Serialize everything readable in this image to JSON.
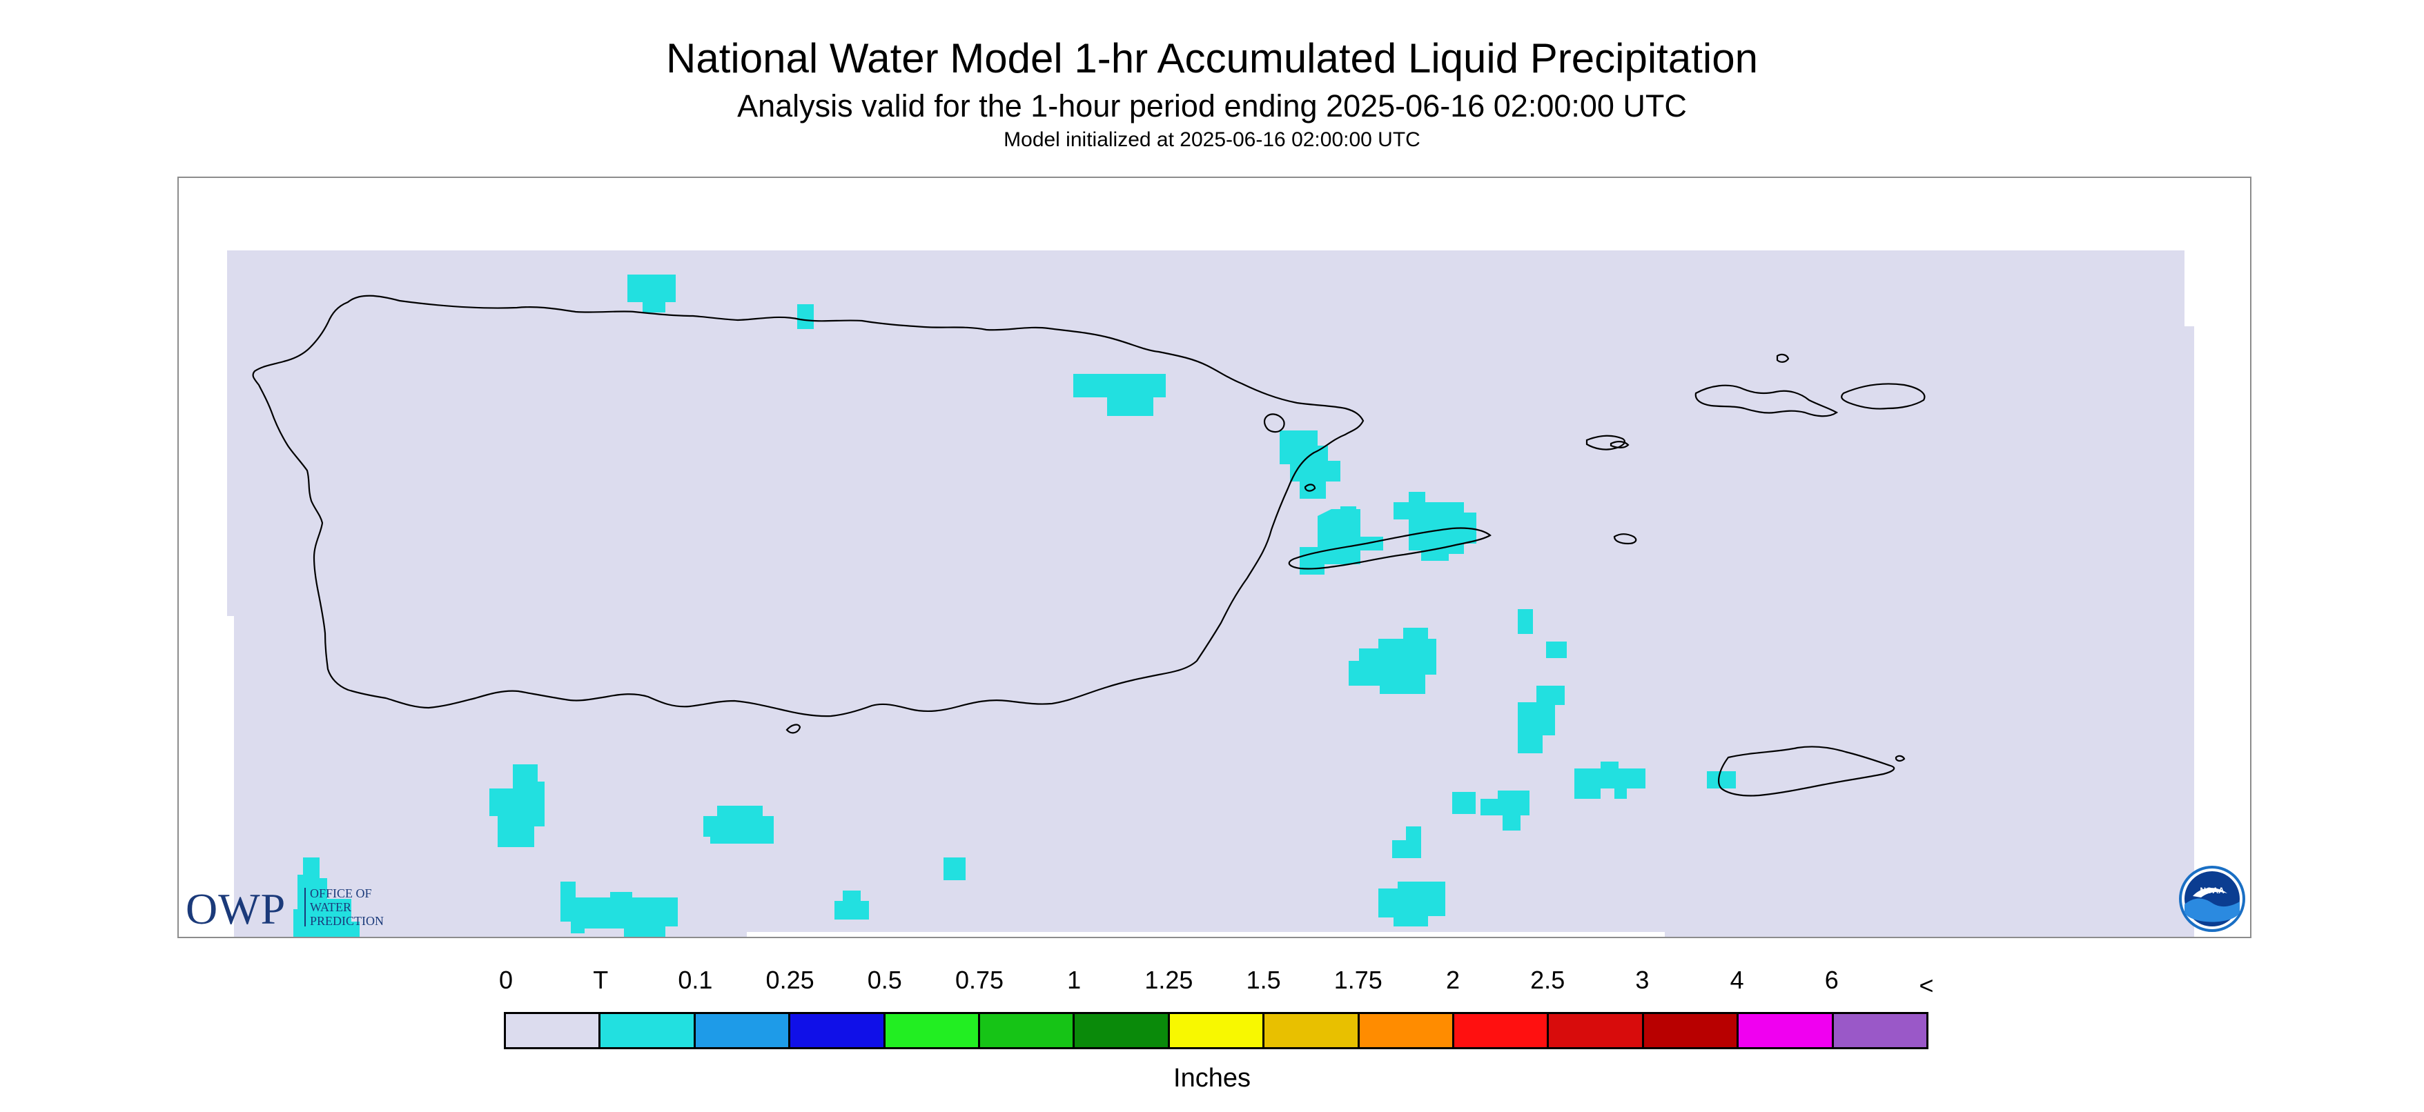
{
  "title": "National Water Model 1-hr Accumulated Liquid Precipitation",
  "subtitle": "Analysis valid for the 1-hour period ending 2025-06-16 02:00:00 UTC",
  "init_line": "Model initialized at 2025-06-16 02:00:00 UTC",
  "logo_owp": {
    "abbr": "OWP",
    "line1": "OFFICE OF",
    "line2": "WATER",
    "line3": "PREDICTION"
  },
  "logo_noaa": "NOAA",
  "legend": {
    "labels": [
      "0",
      "T",
      "0.1",
      "0.25",
      "0.5",
      "0.75",
      "1",
      "1.25",
      "1.5",
      "1.75",
      "2",
      "2.5",
      "3",
      "4",
      "6",
      "<"
    ],
    "colors": [
      "#dcdcee",
      "#22e0e0",
      "#1e9be8",
      "#1010e8",
      "#22ee22",
      "#16c416",
      "#0a8a0a",
      "#f8f800",
      "#e8c000",
      "#ff8c00",
      "#ff1010",
      "#d80c0c",
      "#b80000",
      "#f000f0",
      "#9a58c8"
    ],
    "units": "Inches"
  },
  "map": {
    "background_color": "#dcdcee",
    "precip_color": "#22e0e0",
    "coast_color": "#000000",
    "region": "Puerto Rico and U.S. Virgin Islands",
    "precipitation_category_shown": "T"
  }
}
